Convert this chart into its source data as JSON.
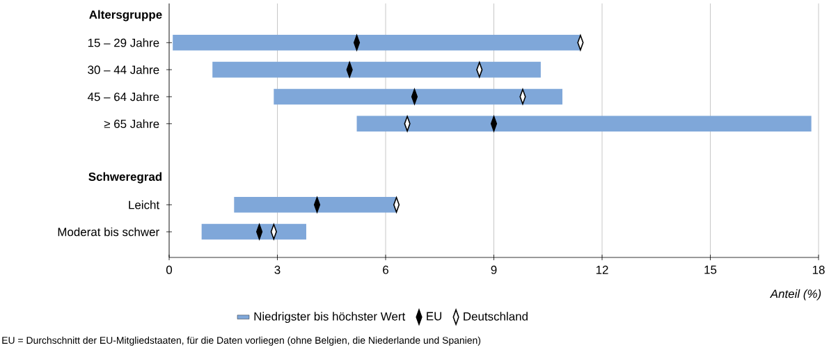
{
  "chart_data": {
    "type": "bar",
    "orientation": "horizontal",
    "categories": [
      "Altersgruppe",
      "15 – 29 Jahre",
      "30 – 44 Jahre",
      "45 – 64 Jahre",
      "≥ 65 Jahre",
      null,
      "Schweregrad",
      "Leicht",
      "Moderat bis schwer"
    ],
    "series": [
      {
        "name": "Niedrigster bis höchster Wert",
        "color": "#7fa7d9",
        "base": [
          null,
          0.1,
          1.2,
          2.9,
          5.2,
          null,
          null,
          1.8,
          0.9
        ],
        "values": [
          null,
          11.3,
          9.1,
          8.0,
          12.6,
          null,
          null,
          4.5,
          2.9
        ]
      },
      {
        "name": "EU",
        "type": "scatter",
        "marker": "diamond",
        "color": "#000000",
        "values": [
          null,
          5.2,
          5.0,
          6.8,
          9.0,
          null,
          null,
          4.1,
          2.5
        ]
      },
      {
        "name": "Deutschland",
        "type": "scatter",
        "marker": "diamond",
        "color": "#ffffff",
        "values": [
          null,
          11.4,
          8.6,
          9.8,
          6.6,
          null,
          null,
          6.3,
          2.9
        ]
      }
    ],
    "xlim": [
      0,
      18
    ],
    "xticks": [
      0,
      3,
      6,
      9,
      12,
      15,
      18
    ],
    "xlabel": "Anteil (%)",
    "grid": "x",
    "legend": "bottom",
    "annotations": [
      "EU = Durchschnitt der EU-Mitgliedstaaten, für die Daten vorliegen (ohne Belgien, die Niederlande und Spanien)"
    ]
  }
}
